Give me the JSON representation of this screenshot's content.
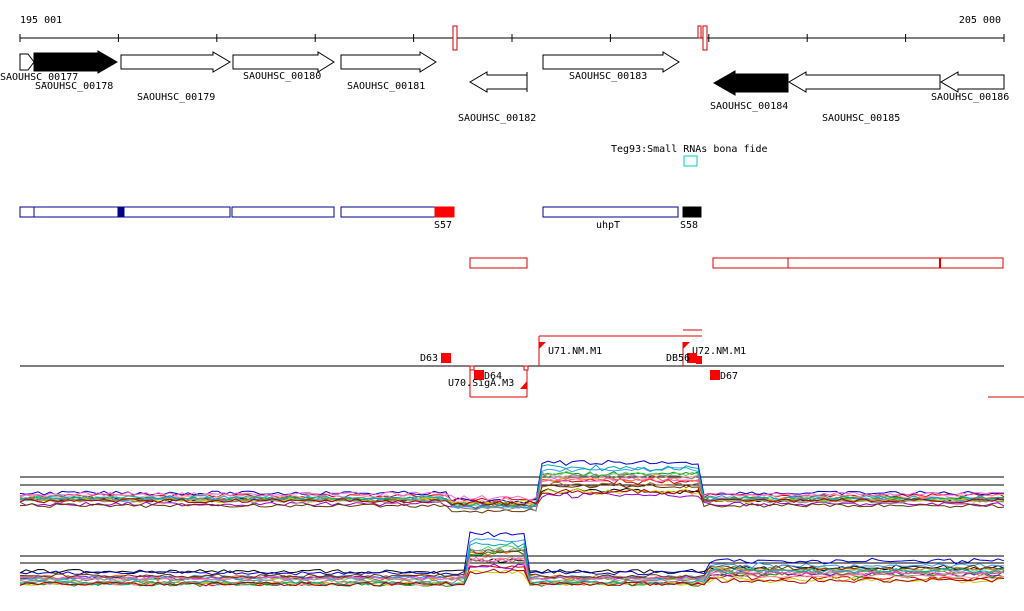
{
  "ruler": {
    "start_label": "195 001",
    "end_label": "205 000"
  },
  "genes": [
    {
      "id": "g177",
      "label": "SAOUHSC_00177",
      "strand": "+",
      "style": "open"
    },
    {
      "id": "g178",
      "label": "SAOUHSC_00178",
      "strand": "+",
      "style": "filled"
    },
    {
      "id": "g179",
      "label": "SAOUHSC_00179",
      "strand": "+",
      "style": "open"
    },
    {
      "id": "g180",
      "label": "SAOUHSC_00180",
      "strand": "+",
      "style": "open"
    },
    {
      "id": "g181",
      "label": "SAOUHSC_00181",
      "strand": "+",
      "style": "open"
    },
    {
      "id": "g182",
      "label": "SAOUHSC_00182",
      "strand": "-",
      "style": "open"
    },
    {
      "id": "g183",
      "label": "SAOUHSC_00183",
      "strand": "+",
      "style": "open"
    },
    {
      "id": "g184",
      "label": "SAOUHSC_00184",
      "strand": "-",
      "style": "filled"
    },
    {
      "id": "g185",
      "label": "SAOUHSC_00185",
      "strand": "-",
      "style": "open"
    },
    {
      "id": "g186",
      "label": "SAOUHSC_00186",
      "strand": "-",
      "style": "open"
    }
  ],
  "srna_track": {
    "label": "Teg93:Small RNAs bona fide"
  },
  "operon_labels": {
    "s57": "S57",
    "uhpt": "uhpT",
    "s58": "S58"
  },
  "promoter_labels": {
    "d63": "D63",
    "d64": "D64",
    "u70": "U70.SigA.M3",
    "u71": "U71.NM.M1",
    "db56": "DB56",
    "u72": "U72.NM.M1",
    "d67": "D67"
  },
  "colors": {
    "operon_blue": "#00008b",
    "feature_red": "#ff0000",
    "gene_black": "#000000",
    "srna_cyan": "#00cccc"
  }
}
